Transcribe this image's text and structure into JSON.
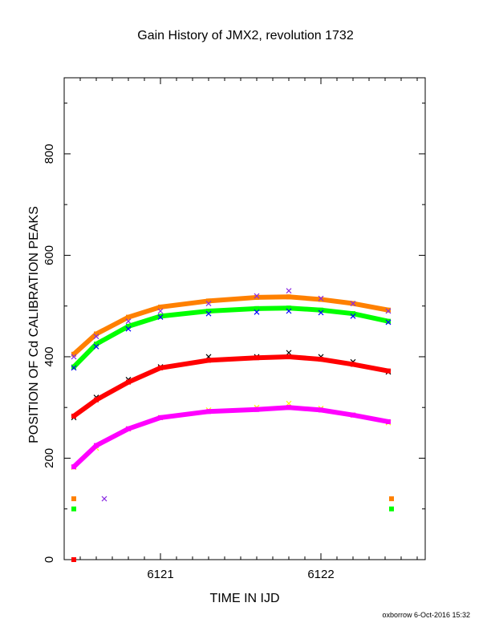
{
  "chart_data": {
    "type": "scatter",
    "title": "Gain History of JMX2, revolution 1732",
    "xlabel": "TIME IN IJD",
    "ylabel": "POSITION OF Cd CALIBRATION PEAKS",
    "xlim": [
      6120.4,
      6122.65
    ],
    "ylim": [
      0,
      950
    ],
    "xticks": [
      6121,
      6122
    ],
    "xtick_labels": [
      "6121",
      "6122"
    ],
    "yticks": [
      0,
      200,
      400,
      600,
      800
    ],
    "ytick_labels": [
      "0",
      "200",
      "400",
      "600",
      "800"
    ],
    "grid": false,
    "legend": "none",
    "footer": "oxborrow  6-Oct-2016 15:32",
    "series": [
      {
        "color": "#ff8000",
        "marker": "fit",
        "x": [
          6120.46,
          6120.6,
          6120.8,
          6121.0,
          6121.3,
          6121.6,
          6121.8,
          6122.0,
          6122.2,
          6122.42
        ],
        "y": [
          405,
          445,
          478,
          498,
          510,
          517,
          518,
          513,
          505,
          492
        ]
      },
      {
        "color": "#8a2be2",
        "marker": "x",
        "x": [
          6120.46,
          6120.6,
          6120.8,
          6121.0,
          6121.3,
          6121.6,
          6121.8,
          6122.0,
          6122.2,
          6122.42
        ],
        "y": [
          400,
          440,
          470,
          490,
          505,
          520,
          530,
          515,
          505,
          490
        ]
      },
      {
        "color": "#00ff00",
        "marker": "fit",
        "x": [
          6120.46,
          6120.6,
          6120.8,
          6121.0,
          6121.3,
          6121.6,
          6121.8,
          6122.0,
          6122.2,
          6122.42
        ],
        "y": [
          380,
          425,
          460,
          480,
          490,
          495,
          496,
          492,
          485,
          470
        ]
      },
      {
        "color": "#0000ff",
        "marker": "x",
        "x": [
          6120.46,
          6120.6,
          6120.8,
          6121.0,
          6121.3,
          6121.6,
          6121.8,
          6122.0,
          6122.2,
          6122.42
        ],
        "y": [
          378,
          420,
          455,
          478,
          485,
          488,
          490,
          487,
          480,
          468
        ]
      },
      {
        "color": "#000000",
        "marker": "x",
        "x": [
          6120.46,
          6120.6,
          6120.8,
          6121.0,
          6121.3,
          6121.6,
          6121.8,
          6122.0,
          6122.2,
          6122.42
        ],
        "y": [
          280,
          320,
          355,
          380,
          400,
          400,
          408,
          400,
          390,
          370
        ]
      },
      {
        "color": "#ff0000",
        "marker": "fit",
        "x": [
          6120.46,
          6120.6,
          6120.8,
          6121.0,
          6121.3,
          6121.6,
          6121.8,
          6122.0,
          6122.2,
          6122.42
        ],
        "y": [
          283,
          315,
          350,
          378,
          393,
          398,
          400,
          395,
          385,
          372
        ]
      },
      {
        "color": "#ffff00",
        "marker": "x",
        "x": [
          6120.46,
          6120.6,
          6120.8,
          6121.0,
          6121.3,
          6121.6,
          6121.8,
          6122.0,
          6122.2,
          6122.42
        ],
        "y": [
          182,
          220,
          258,
          280,
          295,
          300,
          308,
          298,
          285,
          270
        ]
      },
      {
        "color": "#ff00ff",
        "marker": "fit",
        "x": [
          6120.46,
          6120.6,
          6120.8,
          6121.0,
          6121.3,
          6121.6,
          6121.8,
          6122.0,
          6122.2,
          6122.42
        ],
        "y": [
          183,
          225,
          258,
          280,
          292,
          296,
          300,
          295,
          285,
          272
        ]
      },
      {
        "color": "#ff8000",
        "marker": "square",
        "x": [
          6120.46,
          6122.44
        ],
        "y": [
          120,
          120
        ]
      },
      {
        "color": "#00ff00",
        "marker": "square",
        "x": [
          6120.46,
          6122.44
        ],
        "y": [
          100,
          100
        ]
      },
      {
        "color": "#8a2be2",
        "marker": "x",
        "x": [
          6120.65
        ],
        "y": [
          120
        ]
      },
      {
        "color": "#ff0000",
        "marker": "square",
        "x": [
          6120.46
        ],
        "y": [
          0
        ]
      }
    ]
  }
}
